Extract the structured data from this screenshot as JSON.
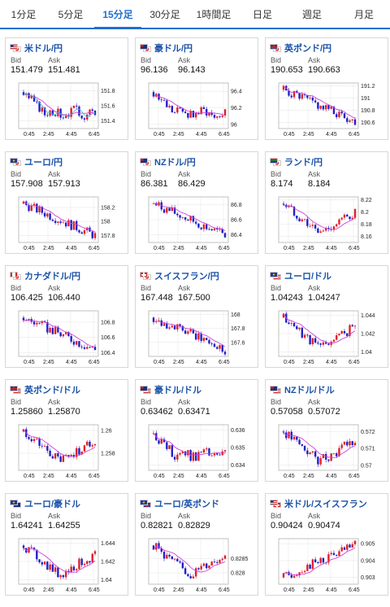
{
  "tabs": [
    {
      "label": "1分足",
      "active": false
    },
    {
      "label": "5分足",
      "active": false
    },
    {
      "label": "15分足",
      "active": true
    },
    {
      "label": "30分足",
      "active": false
    },
    {
      "label": "1時間足",
      "active": false
    },
    {
      "label": "日足",
      "active": false
    },
    {
      "label": "週足",
      "active": false
    },
    {
      "label": "月足",
      "active": false
    }
  ],
  "labels": {
    "bid": "Bid",
    "ask": "Ask"
  },
  "colors": {
    "accent": "#1f6fd1",
    "title": "#1a52a8",
    "up": "#e0202a",
    "down": "#2020c8",
    "ma": "#d040d8",
    "ma2": "#40b8c8"
  },
  "cards": [
    {
      "title": "米ドル/円",
      "flags": [
        "us-flag",
        "jp-flag"
      ],
      "bid": "151.479",
      "ask": "151.481",
      "ticks": [
        "151.8",
        "151.6",
        "151.4"
      ],
      "xlabels": [
        "0:45",
        "2:45",
        "4:45",
        "6:45"
      ],
      "chart_data": {
        "type": "line",
        "trend": "down-then-range",
        "ylim": [
          151.3,
          151.9
        ],
        "has_second_ma": true
      }
    },
    {
      "title": "豪ドル/円",
      "flags": [
        "au-flag",
        "jp-flag"
      ],
      "bid": "96.136",
      "ask": "96.143",
      "ticks": [
        "96.4",
        "96.2",
        "96"
      ],
      "xlabels": [
        "0:45",
        "2:45",
        "4:45",
        "6:45"
      ],
      "chart_data": {
        "type": "line",
        "trend": "down-then-range",
        "ylim": [
          95.95,
          96.5
        ],
        "has_second_ma": false
      }
    },
    {
      "title": "英ポンド/円",
      "flags": [
        "gb-flag",
        "jp-flag"
      ],
      "bid": "190.653",
      "ask": "190.663",
      "ticks": [
        "191.2",
        "191",
        "190.8",
        "190.6"
      ],
      "xlabels": [
        "0:45",
        "2:45",
        "4:45",
        "6:45"
      ],
      "chart_data": {
        "type": "line",
        "trend": "down",
        "ylim": [
          190.5,
          191.25
        ],
        "has_second_ma": false
      }
    },
    {
      "title": "ユーロ/円",
      "flags": [
        "eu-flag",
        "jp-flag"
      ],
      "bid": "157.908",
      "ask": "157.913",
      "ticks": [
        "158.2",
        "158",
        "157.8"
      ],
      "xlabels": [
        "0:45",
        "2:45",
        "4:45",
        "6:45"
      ],
      "chart_data": {
        "type": "line",
        "trend": "down",
        "ylim": [
          157.7,
          158.35
        ],
        "has_second_ma": false
      }
    },
    {
      "title": "NZドル/円",
      "flags": [
        "nz-flag",
        "jp-flag"
      ],
      "bid": "86.381",
      "ask": "86.429",
      "ticks": [
        "86.8",
        "86.6",
        "86.4"
      ],
      "xlabels": [
        "0:45",
        "2:45",
        "4:45",
        "6:45"
      ],
      "chart_data": {
        "type": "line",
        "trend": "down",
        "ylim": [
          86.3,
          86.9
        ],
        "has_second_ma": false
      }
    },
    {
      "title": "ランド/円",
      "flags": [
        "za-flag",
        "jp-flag"
      ],
      "bid": "8.174",
      "ask": "8.184",
      "ticks": [
        "8.22",
        "8.2",
        "8.18",
        "8.16"
      ],
      "xlabels": [
        "0:45",
        "2:45",
        "4:45",
        "6:45"
      ],
      "chart_data": {
        "type": "line",
        "trend": "down-then-up",
        "ylim": [
          8.15,
          8.225
        ],
        "has_second_ma": false
      }
    },
    {
      "title": "カナダドル/円",
      "flags": [
        "ca-flag",
        "jp-flag"
      ],
      "bid": "106.425",
      "ask": "106.440",
      "ticks": [
        "106.8",
        "106.6",
        "106.4"
      ],
      "xlabels": [
        "0:45",
        "2:45",
        "4:45",
        "6:45"
      ],
      "chart_data": {
        "type": "line",
        "trend": "down",
        "ylim": [
          106.35,
          106.95
        ],
        "has_second_ma": false
      }
    },
    {
      "title": "スイスフラン/円",
      "flags": [
        "ch-flag",
        "jp-flag"
      ],
      "bid": "167.448",
      "ask": "167.500",
      "ticks": [
        "168",
        "167.8",
        "167.6"
      ],
      "xlabels": [
        "0:45",
        "2:45",
        "4:45",
        "6:45"
      ],
      "chart_data": {
        "type": "line",
        "trend": "down",
        "ylim": [
          167.4,
          168.05
        ],
        "has_second_ma": false
      }
    },
    {
      "title": "ユーロ/ドル",
      "flags": [
        "eu-flag",
        "us-flag"
      ],
      "bid": "1.04243",
      "ask": "1.04247",
      "ticks": [
        "1.044",
        "1.042",
        "1.04"
      ],
      "xlabels": [
        "0:45",
        "2:45",
        "4:45",
        "6:45"
      ],
      "chart_data": {
        "type": "line",
        "trend": "down-then-up",
        "ylim": [
          1.0395,
          1.0445
        ],
        "has_second_ma": false
      }
    },
    {
      "title": "英ポンド/ドル",
      "flags": [
        "gb-flag",
        "us-flag"
      ],
      "bid": "1.25860",
      "ask": "1.25870",
      "ticks": [
        "1.26",
        "1.258"
      ],
      "xlabels": [
        "0:45",
        "2:45",
        "4:45",
        "6:45"
      ],
      "chart_data": {
        "type": "line",
        "trend": "down-then-up",
        "ylim": [
          1.2565,
          1.2605
        ],
        "has_second_ma": false
      }
    },
    {
      "title": "豪ドル/ドル",
      "flags": [
        "au-flag",
        "us-flag"
      ],
      "bid": "0.63462",
      "ask": "0.63471",
      "ticks": [
        "0.636",
        "0.635",
        "0.634"
      ],
      "xlabels": [
        "0:45",
        "2:45",
        "4:45",
        "6:45"
      ],
      "chart_data": {
        "type": "line",
        "trend": "down-then-range",
        "ylim": [
          0.6337,
          0.6363
        ],
        "has_second_ma": false
      }
    },
    {
      "title": "NZドル/ドル",
      "flags": [
        "nz-flag",
        "us-flag"
      ],
      "bid": "0.57058",
      "ask": "0.57072",
      "ticks": [
        "0.572",
        "0.571",
        "0.57"
      ],
      "xlabels": [
        "0:45",
        "2:45",
        "4:45",
        "6:45"
      ],
      "chart_data": {
        "type": "line",
        "trend": "down-then-up",
        "ylim": [
          0.5697,
          0.5724
        ],
        "has_second_ma": false
      }
    },
    {
      "title": "ユーロ/豪ドル",
      "flags": [
        "eu-flag",
        "au-flag"
      ],
      "bid": "1.64241",
      "ask": "1.64255",
      "ticks": [
        "1.644",
        "1.642",
        "1.64"
      ],
      "xlabels": [
        "0:45",
        "2:45",
        "4:45",
        "6:45"
      ],
      "chart_data": {
        "type": "line",
        "trend": "down-then-up",
        "ylim": [
          1.6395,
          1.6445
        ],
        "has_second_ma": false
      }
    },
    {
      "title": "ユーロ/英ポンド",
      "flags": [
        "eu-flag",
        "gb-flag"
      ],
      "bid": "0.82821",
      "ask": "0.82829",
      "ticks": [
        "0.8285",
        "0.828"
      ],
      "xlabels": [
        "0:45",
        "2:45",
        "4:45",
        "6:45"
      ],
      "chart_data": {
        "type": "line",
        "trend": "down-then-up",
        "ylim": [
          0.8276,
          0.8292
        ],
        "has_second_ma": false
      }
    },
    {
      "title": "米ドル/スイスフラン",
      "flags": [
        "us-flag",
        "ch-flag"
      ],
      "bid": "0.90424",
      "ask": "0.90474",
      "ticks": [
        "0.905",
        "0.904",
        "0.903"
      ],
      "xlabels": [
        "0:45",
        "2:45",
        "4:45",
        "6:45"
      ],
      "chart_data": {
        "type": "line",
        "trend": "up",
        "ylim": [
          0.9026,
          0.9053
        ],
        "has_second_ma": false
      }
    }
  ]
}
